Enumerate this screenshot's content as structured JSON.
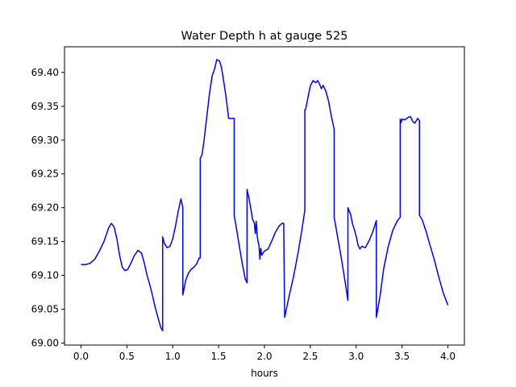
{
  "chart_data": {
    "type": "line",
    "title": "Water Depth h at gauge 525",
    "xlabel": "hours",
    "ylabel": "",
    "xlim": [
      -0.18,
      4.18
    ],
    "ylim": [
      68.997,
      69.438
    ],
    "x_ticks": [
      0.0,
      0.5,
      1.0,
      1.5,
      2.0,
      2.5,
      3.0,
      3.5,
      4.0
    ],
    "x_tick_labels": [
      "0.0",
      "0.5",
      "1.0",
      "1.5",
      "2.0",
      "2.5",
      "3.0",
      "3.5",
      "4.0"
    ],
    "y_ticks": [
      69.0,
      69.05,
      69.1,
      69.15,
      69.2,
      69.25,
      69.3,
      69.35,
      69.4
    ],
    "y_tick_labels": [
      "69.00",
      "69.05",
      "69.10",
      "69.15",
      "69.20",
      "69.25",
      "69.30",
      "69.35",
      "69.40"
    ],
    "grid": false,
    "legend": "none",
    "series": [
      {
        "color": "#0000ff",
        "x": [
          0.0,
          0.05,
          0.1,
          0.15,
          0.2,
          0.25,
          0.3,
          0.33,
          0.36,
          0.39,
          0.42,
          0.45,
          0.48,
          0.51,
          0.54,
          0.58,
          0.62,
          0.66,
          0.69,
          0.72,
          0.75,
          0.78,
          0.81,
          0.84,
          0.87,
          0.89,
          0.89,
          0.91,
          0.94,
          0.97,
          1.0,
          1.03,
          1.06,
          1.09,
          1.11,
          1.11,
          1.14,
          1.17,
          1.2,
          1.23,
          1.26,
          1.29,
          1.3,
          1.3,
          1.32,
          1.34,
          1.37,
          1.4,
          1.43,
          1.46,
          1.48,
          1.51,
          1.53,
          1.55,
          1.58,
          1.61,
          1.64,
          1.67,
          1.67,
          1.7,
          1.73,
          1.76,
          1.79,
          1.81,
          1.81,
          1.83,
          1.85,
          1.87,
          1.89,
          1.9,
          1.91,
          1.92,
          1.93,
          1.94,
          1.95,
          1.96,
          1.97,
          2.0,
          2.04,
          2.08,
          2.12,
          2.16,
          2.19,
          2.21,
          2.22,
          2.22,
          2.27,
          2.32,
          2.37,
          2.41,
          2.44,
          2.44,
          2.45,
          2.47,
          2.5,
          2.53,
          2.56,
          2.58,
          2.6,
          2.62,
          2.64,
          2.67,
          2.7,
          2.73,
          2.76,
          2.76,
          2.8,
          2.84,
          2.88,
          2.91,
          2.91,
          2.94,
          2.96,
          2.98,
          3.0,
          3.02,
          3.04,
          3.06,
          3.1,
          3.14,
          3.18,
          3.22,
          3.22,
          3.26,
          3.3,
          3.35,
          3.4,
          3.45,
          3.48,
          3.48,
          3.49,
          3.5,
          3.53,
          3.56,
          3.59,
          3.62,
          3.64,
          3.66,
          3.67,
          3.69,
          3.69,
          3.72,
          3.76,
          3.8,
          3.85,
          3.9,
          3.95,
          4.0
        ],
        "y": [
          69.116,
          69.116,
          69.118,
          69.124,
          69.136,
          69.15,
          69.17,
          69.177,
          69.172,
          69.155,
          69.13,
          69.112,
          69.107,
          69.109,
          69.117,
          69.129,
          69.137,
          69.133,
          69.118,
          69.1,
          69.086,
          69.07,
          69.052,
          69.037,
          69.023,
          69.018,
          69.157,
          69.147,
          69.141,
          69.143,
          69.154,
          69.173,
          69.195,
          69.213,
          69.2,
          69.071,
          69.092,
          69.103,
          69.109,
          69.112,
          69.117,
          69.126,
          69.126,
          69.273,
          69.279,
          69.298,
          69.333,
          69.368,
          69.395,
          69.407,
          69.419,
          69.417,
          69.408,
          69.392,
          69.365,
          69.332,
          69.332,
          69.332,
          69.189,
          69.165,
          69.14,
          69.116,
          69.095,
          69.089,
          69.227,
          69.215,
          69.2,
          69.183,
          69.177,
          69.162,
          69.18,
          69.16,
          69.15,
          69.145,
          69.124,
          69.14,
          69.13,
          69.136,
          69.139,
          69.151,
          69.164,
          69.173,
          69.177,
          69.177,
          69.038,
          69.038,
          69.07,
          69.1,
          69.136,
          69.169,
          69.196,
          69.345,
          69.346,
          69.36,
          69.38,
          69.388,
          69.385,
          69.388,
          69.383,
          69.376,
          69.381,
          69.372,
          69.357,
          69.335,
          69.316,
          69.186,
          69.155,
          69.124,
          69.09,
          69.063,
          69.2,
          69.19,
          69.176,
          69.168,
          69.158,
          69.145,
          69.139,
          69.143,
          69.141,
          69.151,
          69.164,
          69.181,
          69.038,
          69.069,
          69.11,
          69.143,
          69.167,
          69.181,
          69.186,
          69.331,
          69.326,
          69.331,
          69.33,
          69.333,
          69.335,
          69.327,
          69.325,
          69.33,
          69.332,
          69.329,
          69.189,
          69.182,
          69.166,
          69.147,
          69.124,
          69.098,
          69.074,
          69.056
        ]
      }
    ]
  }
}
